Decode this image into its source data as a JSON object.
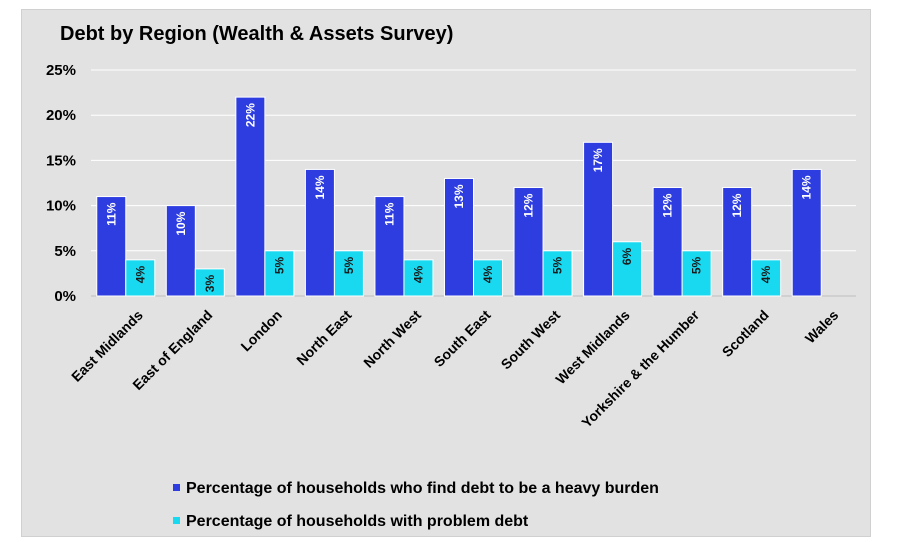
{
  "chart_data": {
    "type": "bar",
    "title": "Debt by Region (Wealth & Assets Survey)",
    "categories": [
      "East Midlands",
      "East of England",
      "London",
      "North East",
      "North West",
      "South East",
      "South West",
      "West Midlands",
      "Yorkshire & the Humber",
      "Scotland",
      "Wales"
    ],
    "series": [
      {
        "name": "Percentage of households who find debt to be a heavy burden",
        "color": "#2d3de0",
        "values": [
          11,
          10,
          22,
          14,
          11,
          13,
          12,
          17,
          12,
          12,
          14
        ],
        "labels": [
          "11%",
          "10%",
          "22%",
          "14%",
          "11%",
          "13%",
          "12%",
          "17%",
          "12%",
          "12%",
          "14%"
        ]
      },
      {
        "name": "Percentage of households with problem debt",
        "color": "#19d9f0",
        "values": [
          4,
          3,
          5,
          5,
          4,
          4,
          5,
          6,
          5,
          4,
          null
        ],
        "labels": [
          "4%",
          "3%",
          "5%",
          "5%",
          "4%",
          "4%",
          "5%",
          "6%",
          "5%",
          "4%",
          null
        ]
      }
    ],
    "ylim": [
      0,
      25
    ],
    "yticks": [
      "0%",
      "5%",
      "10%",
      "15%",
      "20%",
      "25%"
    ],
    "grid": true,
    "legend_position": "bottom"
  }
}
